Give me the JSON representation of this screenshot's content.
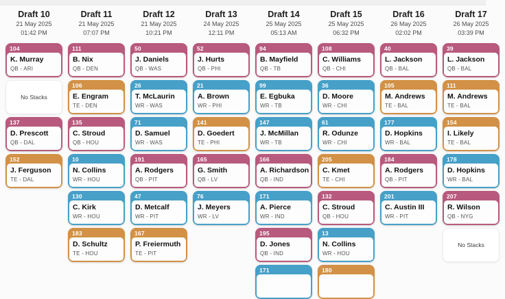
{
  "board": {
    "no_stacks_label": "No Stacks",
    "colors": {
      "qb": "#b85a7d",
      "wr": "#46a0c8",
      "te": "#d29146",
      "card_body": "#fdfdfd"
    },
    "columns": [
      {
        "title": "Draft 10",
        "date": "21 May 2025",
        "time": "01:42 PM",
        "cards": [
          {
            "type": "player",
            "number": "104",
            "name": "K. Murray",
            "meta": "QB - ARI",
            "group": "qb"
          },
          {
            "type": "no_stacks"
          },
          {
            "type": "player",
            "number": "137",
            "name": "D. Prescott",
            "meta": "QB - DAL",
            "group": "qb"
          },
          {
            "type": "player",
            "number": "152",
            "name": "J. Ferguson",
            "meta": "TE - DAL",
            "group": "te"
          }
        ]
      },
      {
        "title": "Draft 11",
        "date": "21 May 2025",
        "time": "07:07 PM",
        "cards": [
          {
            "type": "player",
            "number": "111",
            "name": "B. Nix",
            "meta": "QB - DEN",
            "group": "qb"
          },
          {
            "type": "player",
            "number": "106",
            "name": "E. Engram",
            "meta": "TE - DEN",
            "group": "te"
          },
          {
            "type": "player",
            "number": "135",
            "name": "C. Stroud",
            "meta": "QB - HOU",
            "group": "qb"
          },
          {
            "type": "player",
            "number": "10",
            "name": "N. Collins",
            "meta": "WR - HOU",
            "group": "wr"
          },
          {
            "type": "player",
            "number": "130",
            "name": "C. Kirk",
            "meta": "WR - HOU",
            "group": "wr"
          },
          {
            "type": "player",
            "number": "183",
            "name": "D. Schultz",
            "meta": "TE - HOU",
            "group": "te"
          }
        ]
      },
      {
        "title": "Draft 12",
        "date": "21 May 2025",
        "time": "10:21 PM",
        "cards": [
          {
            "type": "player",
            "number": "50",
            "name": "J. Daniels",
            "meta": "QB - WAS",
            "group": "qb"
          },
          {
            "type": "player",
            "number": "26",
            "name": "T. McLaurin",
            "meta": "WR - WAS",
            "group": "wr"
          },
          {
            "type": "player",
            "number": "71",
            "name": "D. Samuel",
            "meta": "WR - WAS",
            "group": "wr"
          },
          {
            "type": "player",
            "number": "191",
            "name": "A. Rodgers",
            "meta": "QB - PIT",
            "group": "qb"
          },
          {
            "type": "player",
            "number": "47",
            "name": "D. Metcalf",
            "meta": "WR - PIT",
            "group": "wr"
          },
          {
            "type": "player",
            "number": "167",
            "name": "P. Freiermuth",
            "meta": "TE - PIT",
            "group": "te"
          }
        ]
      },
      {
        "title": "Draft 13",
        "date": "24 May 2025",
        "time": "12:11 PM",
        "cards": [
          {
            "type": "player",
            "number": "52",
            "name": "J. Hurts",
            "meta": "QB - PHI",
            "group": "qb"
          },
          {
            "type": "player",
            "number": "21",
            "name": "A. Brown",
            "meta": "WR - PHI",
            "group": "wr"
          },
          {
            "type": "player",
            "number": "141",
            "name": "D. Goedert",
            "meta": "TE - PHI",
            "group": "te"
          },
          {
            "type": "player",
            "number": "165",
            "name": "G. Smith",
            "meta": "QB - LV",
            "group": "qb"
          },
          {
            "type": "player",
            "number": "76",
            "name": "J. Meyers",
            "meta": "WR - LV",
            "group": "wr"
          }
        ]
      },
      {
        "title": "Draft 14",
        "date": "25 May 2025",
        "time": "05:13 AM",
        "cards": [
          {
            "type": "player",
            "number": "94",
            "name": "B. Mayfield",
            "meta": "QB - TB",
            "group": "qb"
          },
          {
            "type": "player",
            "number": "99",
            "name": "E. Egbuka",
            "meta": "WR - TB",
            "group": "wr"
          },
          {
            "type": "player",
            "number": "147",
            "name": "J. McMillan",
            "meta": "WR - TB",
            "group": "wr"
          },
          {
            "type": "player",
            "number": "166",
            "name": "A. Richardson",
            "meta": "QB - IND",
            "group": "qb"
          },
          {
            "type": "player",
            "number": "171",
            "name": "A. Pierce",
            "meta": "WR - IND",
            "group": "wr"
          },
          {
            "type": "player",
            "number": "195",
            "name": "D. Jones",
            "meta": "QB - IND",
            "group": "qb"
          },
          {
            "type": "player",
            "number": "171",
            "name": "",
            "meta": "",
            "group": "wr"
          }
        ]
      },
      {
        "title": "Draft 15",
        "date": "25 May 2025",
        "time": "06:32 PM",
        "cards": [
          {
            "type": "player",
            "number": "108",
            "name": "C. Williams",
            "meta": "QB - CHI",
            "group": "qb"
          },
          {
            "type": "player",
            "number": "36",
            "name": "D. Moore",
            "meta": "WR - CHI",
            "group": "wr"
          },
          {
            "type": "player",
            "number": "61",
            "name": "R. Odunze",
            "meta": "WR - CHI",
            "group": "wr"
          },
          {
            "type": "player",
            "number": "205",
            "name": "C. Kmet",
            "meta": "TE - CHI",
            "group": "te"
          },
          {
            "type": "player",
            "number": "132",
            "name": "C. Stroud",
            "meta": "QB - HOU",
            "group": "qb"
          },
          {
            "type": "player",
            "number": "13",
            "name": "N. Collins",
            "meta": "WR - HOU",
            "group": "wr"
          },
          {
            "type": "player",
            "number": "180",
            "name": "",
            "meta": "",
            "group": "te"
          }
        ]
      },
      {
        "title": "Draft 16",
        "date": "26 May 2025",
        "time": "02:02 PM",
        "cards": [
          {
            "type": "player",
            "number": "40",
            "name": "L. Jackson",
            "meta": "QB - BAL",
            "group": "qb"
          },
          {
            "type": "player",
            "number": "105",
            "name": "M. Andrews",
            "meta": "TE - BAL",
            "group": "te"
          },
          {
            "type": "player",
            "number": "177",
            "name": "D. Hopkins",
            "meta": "WR - BAL",
            "group": "wr"
          },
          {
            "type": "player",
            "number": "184",
            "name": "A. Rodgers",
            "meta": "QB - PIT",
            "group": "qb"
          },
          {
            "type": "player",
            "number": "201",
            "name": "C. Austin III",
            "meta": "WR - PIT",
            "group": "wr"
          }
        ]
      },
      {
        "title": "Draft 17",
        "date": "26 May 2025",
        "time": "03:39 PM",
        "cards": [
          {
            "type": "player",
            "number": "39",
            "name": "L. Jackson",
            "meta": "QB - BAL",
            "group": "qb"
          },
          {
            "type": "player",
            "number": "111",
            "name": "M. Andrews",
            "meta": "TE - BAL",
            "group": "te"
          },
          {
            "type": "player",
            "number": "154",
            "name": "I. Likely",
            "meta": "TE - BAL",
            "group": "te"
          },
          {
            "type": "player",
            "number": "178",
            "name": "D. Hopkins",
            "meta": "WR - BAL",
            "group": "wr"
          },
          {
            "type": "player",
            "number": "207",
            "name": "R. Wilson",
            "meta": "QB - NYG",
            "group": "qb"
          },
          {
            "type": "no_stacks"
          }
        ]
      }
    ]
  }
}
